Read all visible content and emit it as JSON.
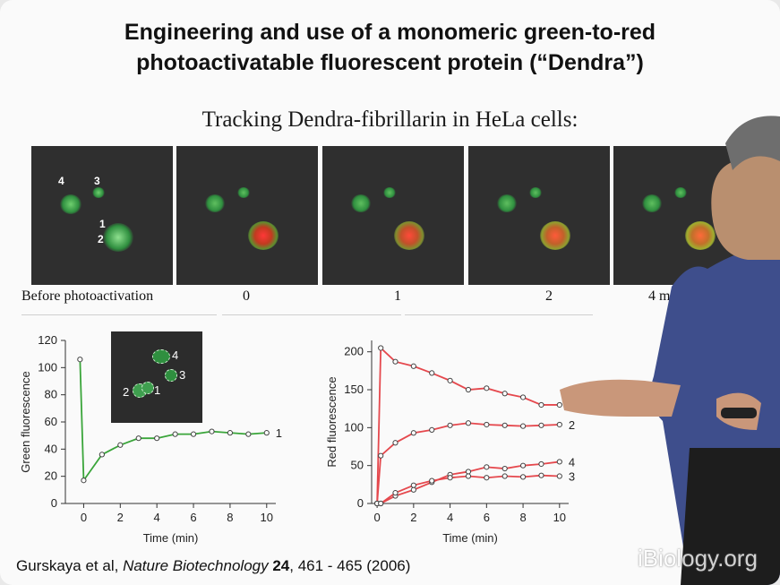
{
  "slide": {
    "title_line1": "Engineering and use of a monomeric green-to-red",
    "title_line2": "photoactivatable fluorescent protein (“Dendra”)",
    "subtitle": "Tracking Dendra-fibrillarin in HeLa cells:",
    "cell_labels": [
      "4",
      "3",
      "1",
      "2"
    ],
    "time_labels": [
      "Before photoactivation",
      "0",
      "1",
      "2",
      "4 min af"
    ],
    "inset_labels": [
      "4",
      "3",
      "2",
      "1"
    ],
    "citation": {
      "authors": "Gurskaya et al, ",
      "journal": "Nature Biotechnology",
      "volume": " 24",
      "pages": ", 461 - 465 (2006)"
    },
    "watermark": "iBiology.org",
    "colors": {
      "green_series": "#3aa53a",
      "red_series": "#e5484d",
      "panel_bg": "#2f2f2f",
      "shirt": "#3e4e8c"
    }
  },
  "chart_data": [
    {
      "type": "line",
      "xlabel": "Time (min)",
      "ylabel": "Green fluorescence",
      "xlim": [
        -1,
        10.5
      ],
      "ylim": [
        0,
        120
      ],
      "xticks": [
        0,
        2,
        4,
        6,
        8,
        10
      ],
      "yticks": [
        0,
        20,
        40,
        60,
        80,
        100,
        120
      ],
      "series": [
        {
          "name": "1",
          "x": [
            -0.2,
            0,
            1,
            2,
            3,
            4,
            5,
            6,
            7,
            8,
            9,
            10
          ],
          "y": [
            106,
            17,
            36,
            43,
            48,
            48,
            51,
            51,
            53,
            52,
            51,
            52
          ]
        }
      ]
    },
    {
      "type": "line",
      "xlabel": "Time (min)",
      "ylabel": "Red fluorescence",
      "xlim": [
        -0.3,
        10.5
      ],
      "ylim": [
        0,
        215
      ],
      "xticks": [
        0,
        2,
        4,
        6,
        8,
        10
      ],
      "yticks": [
        0,
        50,
        100,
        150,
        200
      ],
      "series": [
        {
          "name": "1",
          "x": [
            0,
            0.2,
            1,
            2,
            3,
            4,
            5,
            6,
            7,
            8,
            9,
            10
          ],
          "y": [
            0,
            205,
            187,
            181,
            172,
            162,
            150,
            152,
            145,
            140,
            130,
            130
          ]
        },
        {
          "name": "2",
          "x": [
            0,
            0.2,
            1,
            2,
            3,
            4,
            5,
            6,
            7,
            8,
            9,
            10
          ],
          "y": [
            0,
            63,
            80,
            93,
            97,
            103,
            106,
            104,
            103,
            102,
            103,
            104
          ]
        },
        {
          "name": "4",
          "x": [
            0,
            0.2,
            1,
            2,
            3,
            4,
            5,
            6,
            7,
            8,
            9,
            10
          ],
          "y": [
            0,
            0,
            10,
            18,
            28,
            38,
            42,
            48,
            46,
            50,
            52,
            55
          ]
        },
        {
          "name": "3",
          "x": [
            0,
            0.2,
            1,
            2,
            3,
            4,
            5,
            6,
            7,
            8,
            9,
            10
          ],
          "y": [
            0,
            0,
            14,
            24,
            30,
            34,
            36,
            34,
            36,
            35,
            37,
            36
          ]
        }
      ]
    }
  ]
}
